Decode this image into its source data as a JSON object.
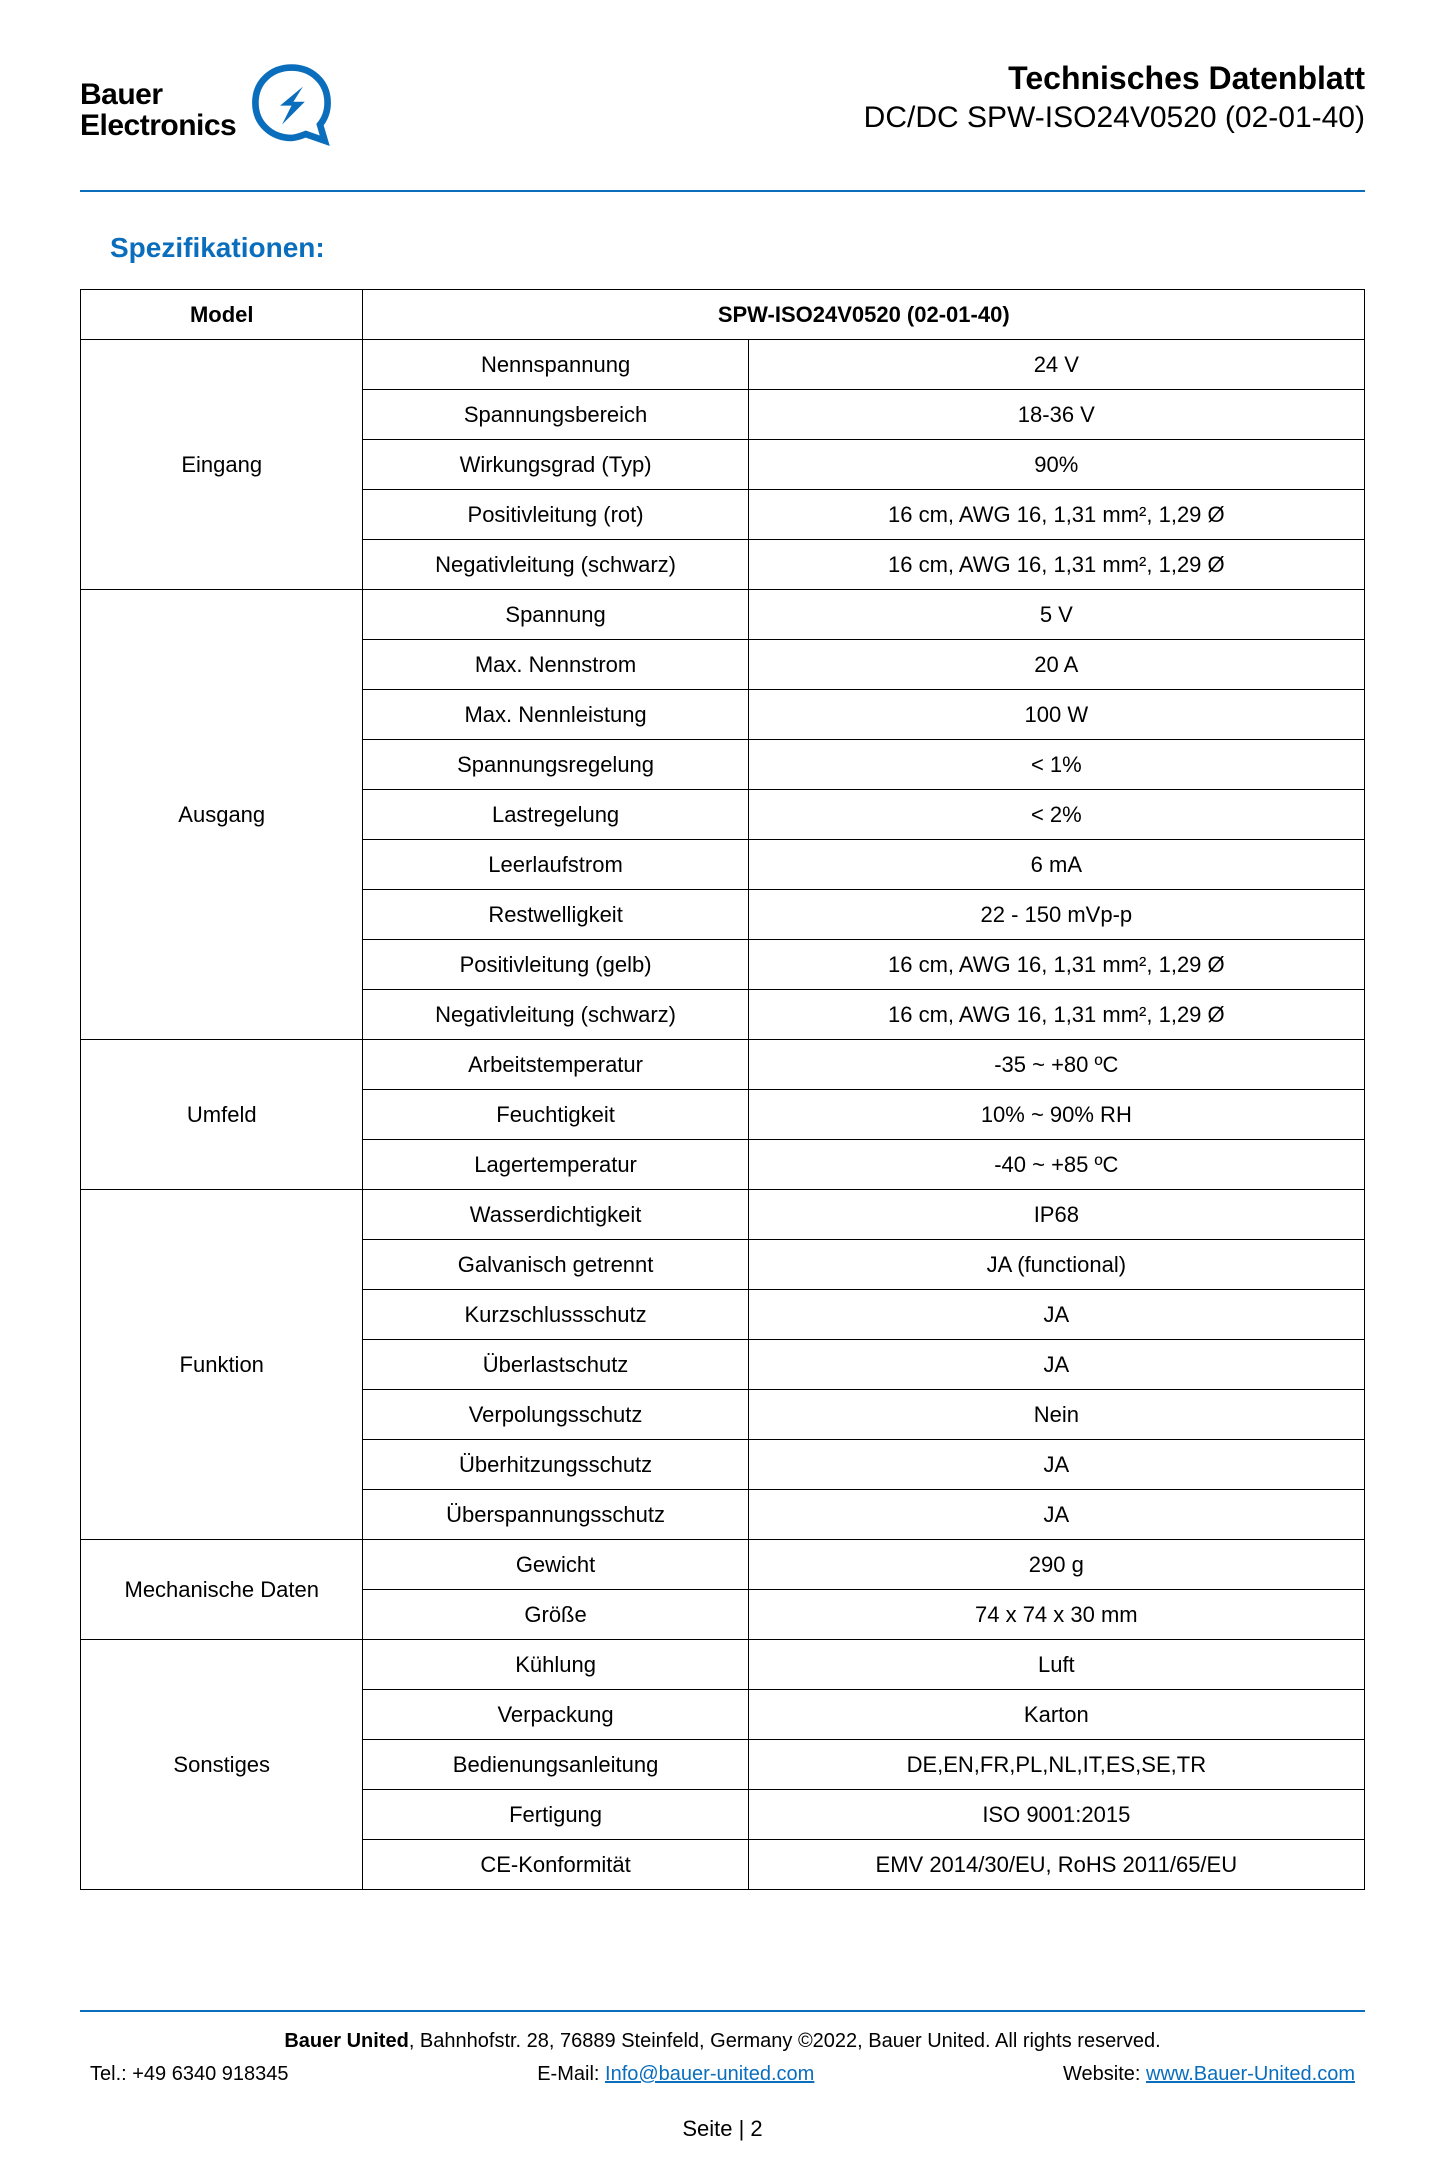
{
  "brand": {
    "line1": "Bauer",
    "line2": "Electronics",
    "accent_color": "#0a6ebd"
  },
  "header": {
    "title": "Technisches Datenblatt",
    "subtitle": "DC/DC SPW-ISO24V0520 (02-01-40)"
  },
  "section_title": "Spezifikationen:",
  "table_header": {
    "model_label": "Model",
    "model_value": "SPW-ISO24V0520 (02-01-40)"
  },
  "groups": [
    {
      "category": "Eingang",
      "rows": [
        {
          "param": "Nennspannung",
          "value": "24 V"
        },
        {
          "param": "Spannungsbereich",
          "value": "18-36 V"
        },
        {
          "param": "Wirkungsgrad (Typ)",
          "value": "90%"
        },
        {
          "param": "Positivleitung (rot)",
          "value": "16 cm, AWG 16, 1,31 mm², 1,29 Ø"
        },
        {
          "param": "Negativleitung (schwarz)",
          "value": "16 cm, AWG 16, 1,31 mm², 1,29 Ø"
        }
      ]
    },
    {
      "category": "Ausgang",
      "rows": [
        {
          "param": "Spannung",
          "value": "5 V"
        },
        {
          "param": "Max. Nennstrom",
          "value": "20 A"
        },
        {
          "param": "Max. Nennleistung",
          "value": "100 W"
        },
        {
          "param": "Spannungsregelung",
          "value": "< 1%"
        },
        {
          "param": "Lastregelung",
          "value": "< 2%"
        },
        {
          "param": "Leerlaufstrom",
          "value": "6 mA"
        },
        {
          "param": "Restwelligkeit",
          "value": "22 - 150 mVp-p"
        },
        {
          "param": "Positivleitung (gelb)",
          "value": "16 cm, AWG 16, 1,31 mm², 1,29 Ø"
        },
        {
          "param": "Negativleitung (schwarz)",
          "value": "16 cm, AWG 16, 1,31 mm², 1,29 Ø"
        }
      ]
    },
    {
      "category": "Umfeld",
      "rows": [
        {
          "param": "Arbeitstemperatur",
          "value": "-35 ~ +80 ºC"
        },
        {
          "param": "Feuchtigkeit",
          "value": "10% ~ 90% RH"
        },
        {
          "param": "Lagertemperatur",
          "value": "-40 ~ +85 ºC"
        }
      ]
    },
    {
      "category": "Funktion",
      "rows": [
        {
          "param": "Wasserdichtigkeit",
          "value": "IP68"
        },
        {
          "param": "Galvanisch getrennt",
          "value": "JA (functional)"
        },
        {
          "param": "Kurzschlussschutz",
          "value": "JA"
        },
        {
          "param": "Überlastschutz",
          "value": "JA"
        },
        {
          "param": "Verpolungsschutz",
          "value": "Nein"
        },
        {
          "param": "Überhitzungsschutz",
          "value": "JA"
        },
        {
          "param": "Überspannungsschutz",
          "value": "JA"
        }
      ]
    },
    {
      "category": "Mechanische Daten",
      "rows": [
        {
          "param": "Gewicht",
          "value": "290 g"
        },
        {
          "param": "Größe",
          "value": "74 x 74 x 30 mm"
        }
      ]
    },
    {
      "category": "Sonstiges",
      "rows": [
        {
          "param": "Kühlung",
          "value": "Luft"
        },
        {
          "param": "Verpackung",
          "value": "Karton"
        },
        {
          "param": "Bedienungsanleitung",
          "value": "DE,EN,FR,PL,NL,IT,ES,SE,TR"
        },
        {
          "param": "Fertigung",
          "value": "ISO 9001:2015"
        },
        {
          "param": "CE-Konformität",
          "value": "EMV 2014/30/EU, RoHS 2011/65/EU"
        }
      ]
    }
  ],
  "footer": {
    "company_bold": "Bauer United",
    "address": ", Bahnhofstr. 28, 76889 Steinfeld, Germany ©2022, Bauer United. All rights reserved.",
    "tel_label": "Tel.: ",
    "tel": "+49 6340 918345",
    "email_label": "E-Mail: ",
    "email": "Info@bauer-united.com",
    "website_label": "Website: ",
    "website": "www.Bauer-United.com",
    "page": "Seite | 2"
  }
}
